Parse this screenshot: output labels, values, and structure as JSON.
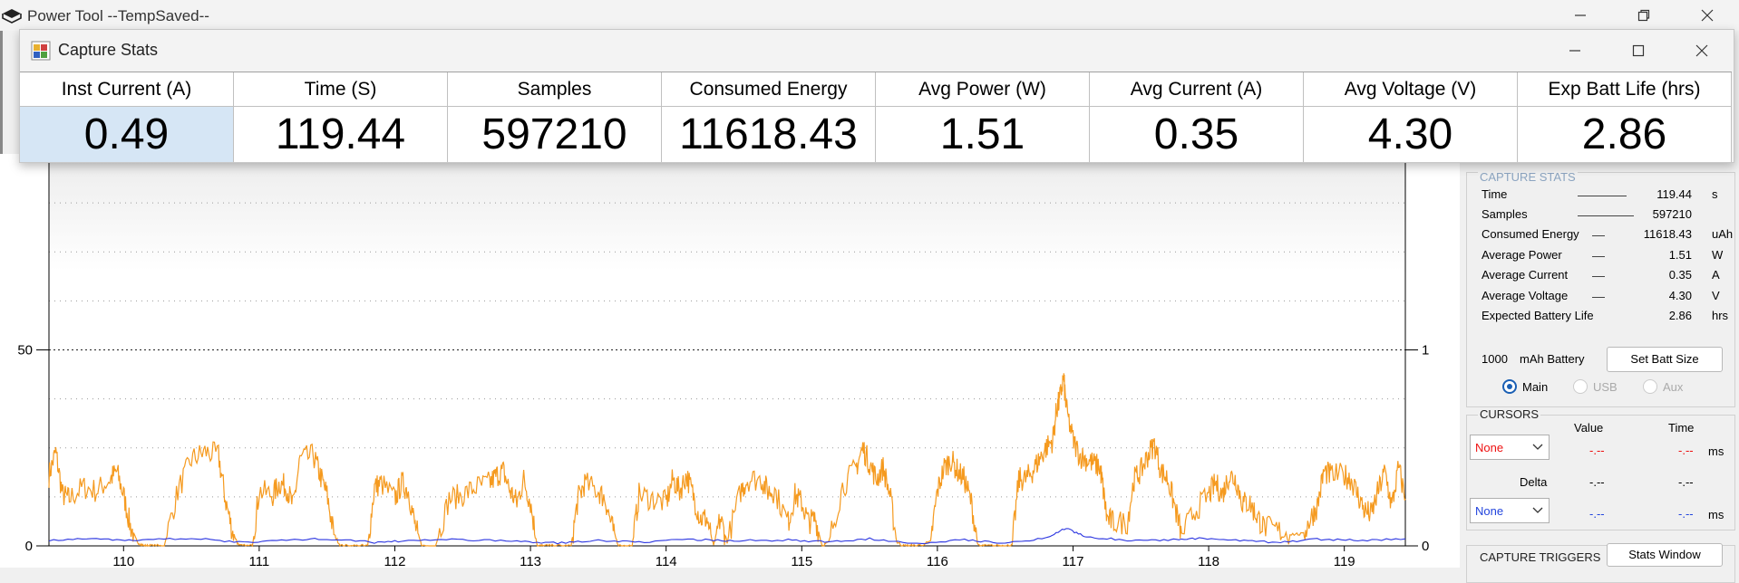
{
  "app": {
    "title": "Power Tool --TempSaved--"
  },
  "stats_window": {
    "title": "Capture Stats",
    "columns": [
      {
        "header": "Inst Current (A)",
        "value": "0.49",
        "selected": true
      },
      {
        "header": "Time (S)",
        "value": "119.44"
      },
      {
        "header": "Samples",
        "value": "597210"
      },
      {
        "header": "Consumed Energy",
        "value": "11618.43"
      },
      {
        "header": "Avg Power (W)",
        "value": "1.51"
      },
      {
        "header": "Avg Current (A)",
        "value": "0.35"
      },
      {
        "header": "Avg Voltage (V)",
        "value": "4.30"
      },
      {
        "header": "Exp Batt Life (hrs)",
        "value": "2.86"
      }
    ]
  },
  "capture_stats_panel": {
    "title": "CAPTURE STATS",
    "rows": [
      {
        "label": "Time",
        "value": "119.44",
        "unit": "s"
      },
      {
        "label": "Samples",
        "value": "597210",
        "unit": ""
      },
      {
        "label": "Consumed Energy",
        "value": "11618.43",
        "unit": "uAh"
      },
      {
        "label": "Average Power",
        "value": "1.51",
        "unit": "W"
      },
      {
        "label": "Average Current",
        "value": "0.35",
        "unit": "A"
      },
      {
        "label": "Average Voltage",
        "value": "4.30",
        "unit": "V"
      },
      {
        "label": "Expected Battery Life",
        "value": "2.86",
        "unit": "hrs"
      }
    ],
    "battery_size": "1000",
    "battery_label": "mAh Battery",
    "set_batt_button": "Set Batt Size",
    "radios": [
      {
        "label": "Main",
        "checked": true,
        "enabled": true
      },
      {
        "label": "USB",
        "checked": false,
        "enabled": false
      },
      {
        "label": "Aux",
        "checked": false,
        "enabled": false
      }
    ]
  },
  "cursors_panel": {
    "title": "CURSORS",
    "value_header": "Value",
    "time_header": "Time",
    "cursor1": {
      "select": "None",
      "value": "-.--",
      "time": "-.--",
      "unit": "ms"
    },
    "delta_label": "Delta",
    "delta": {
      "value": "-.--",
      "time": "-.--"
    },
    "cursor2": {
      "select": "None",
      "value": "-.--",
      "time": "-.--",
      "unit": "ms"
    }
  },
  "capture_triggers": {
    "title": "CAPTURE TRIGGERS",
    "stats_window_button": "Stats Window"
  },
  "chart_data": {
    "type": "line",
    "title": "",
    "xlabel": "",
    "ylabel": "",
    "x_ticks": [
      110,
      111,
      112,
      113,
      114,
      115,
      116,
      117,
      118,
      119
    ],
    "y_left_ticks": [
      0,
      50
    ],
    "y_right_ticks": [
      0,
      1
    ],
    "xlim": [
      109.45,
      119.45
    ],
    "y_left_range": [
      0,
      100
    ],
    "y_right_range": [
      0,
      2
    ],
    "grid": "horizontal-dotted",
    "series": [
      {
        "color": "#f59a1f",
        "axis": "left",
        "points": [
          [
            109.45,
            18
          ],
          [
            109.5,
            24
          ],
          [
            109.55,
            13
          ],
          [
            109.6,
            12
          ],
          [
            109.7,
            15
          ],
          [
            109.8,
            14
          ],
          [
            109.9,
            17
          ],
          [
            109.95,
            19
          ],
          [
            110.0,
            13
          ],
          [
            110.05,
            5
          ],
          [
            110.1,
            1
          ],
          [
            110.15,
            0
          ],
          [
            110.2,
            0
          ],
          [
            110.3,
            0
          ],
          [
            110.4,
            14
          ],
          [
            110.5,
            22
          ],
          [
            110.6,
            24
          ],
          [
            110.7,
            23
          ],
          [
            110.75,
            12
          ],
          [
            110.8,
            4
          ],
          [
            110.85,
            0
          ],
          [
            110.95,
            0
          ],
          [
            111.0,
            14
          ],
          [
            111.1,
            13
          ],
          [
            111.15,
            16
          ],
          [
            111.2,
            15
          ],
          [
            111.25,
            10
          ],
          [
            111.3,
            22
          ],
          [
            111.4,
            23
          ],
          [
            111.45,
            18
          ],
          [
            111.5,
            13
          ],
          [
            111.55,
            3
          ],
          [
            111.6,
            0
          ],
          [
            111.7,
            0
          ],
          [
            111.8,
            0
          ],
          [
            111.85,
            15
          ],
          [
            111.9,
            16
          ],
          [
            112.0,
            12
          ],
          [
            112.05,
            16
          ],
          [
            112.1,
            14
          ],
          [
            112.15,
            5
          ],
          [
            112.2,
            0
          ],
          [
            112.3,
            0
          ],
          [
            112.4,
            12
          ],
          [
            112.5,
            13
          ],
          [
            112.6,
            15
          ],
          [
            112.7,
            16
          ],
          [
            112.75,
            18
          ],
          [
            112.8,
            19
          ],
          [
            112.85,
            14
          ],
          [
            112.9,
            11
          ],
          [
            112.95,
            17
          ],
          [
            113.0,
            11
          ],
          [
            113.05,
            0
          ],
          [
            113.1,
            0
          ],
          [
            113.2,
            0
          ],
          [
            113.3,
            0
          ],
          [
            113.35,
            12
          ],
          [
            113.4,
            16
          ],
          [
            113.5,
            14
          ],
          [
            113.55,
            12
          ],
          [
            113.6,
            5
          ],
          [
            113.65,
            0
          ],
          [
            113.75,
            0
          ],
          [
            113.8,
            13
          ],
          [
            113.9,
            12
          ],
          [
            114.0,
            11
          ],
          [
            114.05,
            17
          ],
          [
            114.1,
            14
          ],
          [
            114.15,
            18
          ],
          [
            114.2,
            13
          ],
          [
            114.25,
            7
          ],
          [
            114.3,
            7
          ],
          [
            114.35,
            0
          ],
          [
            114.4,
            7
          ],
          [
            114.45,
            1
          ],
          [
            114.55,
            14
          ],
          [
            114.6,
            17
          ],
          [
            114.7,
            17
          ],
          [
            114.75,
            14
          ],
          [
            114.8,
            14
          ],
          [
            114.9,
            6
          ],
          [
            114.95,
            13
          ],
          [
            115.0,
            11
          ],
          [
            115.05,
            6
          ],
          [
            115.1,
            7
          ],
          [
            115.15,
            0
          ],
          [
            115.2,
            1
          ],
          [
            115.3,
            15
          ],
          [
            115.4,
            20
          ],
          [
            115.45,
            25
          ],
          [
            115.5,
            21
          ],
          [
            115.55,
            17
          ],
          [
            115.6,
            20
          ],
          [
            115.65,
            13
          ],
          [
            115.7,
            1
          ],
          [
            115.75,
            0
          ],
          [
            115.8,
            0
          ],
          [
            115.85,
            0
          ],
          [
            115.95,
            1
          ],
          [
            116.0,
            14
          ],
          [
            116.05,
            20
          ],
          [
            116.1,
            22
          ],
          [
            116.15,
            19
          ],
          [
            116.2,
            17
          ],
          [
            116.25,
            11
          ],
          [
            116.3,
            0
          ],
          [
            116.35,
            0
          ],
          [
            116.45,
            0
          ],
          [
            116.5,
            0
          ],
          [
            116.55,
            0
          ],
          [
            116.6,
            17
          ],
          [
            116.65,
            17
          ],
          [
            116.7,
            19
          ],
          [
            116.75,
            22
          ],
          [
            116.8,
            25
          ],
          [
            116.85,
            27
          ],
          [
            116.88,
            35
          ],
          [
            116.9,
            37
          ],
          [
            116.93,
            43
          ],
          [
            116.95,
            35
          ],
          [
            117.0,
            27
          ],
          [
            117.05,
            23
          ],
          [
            117.1,
            22
          ],
          [
            117.15,
            21
          ],
          [
            117.2,
            20
          ],
          [
            117.22,
            15
          ],
          [
            117.25,
            7
          ],
          [
            117.3,
            6
          ],
          [
            117.4,
            6
          ],
          [
            117.45,
            17
          ],
          [
            117.5,
            19
          ],
          [
            117.55,
            23
          ],
          [
            117.6,
            26
          ],
          [
            117.65,
            19
          ],
          [
            117.7,
            17
          ],
          [
            117.75,
            10
          ],
          [
            117.8,
            3
          ],
          [
            117.9,
            9
          ],
          [
            118.0,
            13
          ],
          [
            118.05,
            16
          ],
          [
            118.1,
            13
          ],
          [
            118.15,
            18
          ],
          [
            118.2,
            17
          ],
          [
            118.25,
            11
          ],
          [
            118.3,
            11
          ],
          [
            118.35,
            8
          ],
          [
            118.4,
            5
          ],
          [
            118.5,
            4
          ],
          [
            118.6,
            3
          ],
          [
            118.7,
            3
          ],
          [
            118.75,
            7
          ],
          [
            118.8,
            10
          ],
          [
            118.85,
            19
          ],
          [
            118.9,
            18
          ],
          [
            119.0,
            18
          ],
          [
            119.05,
            17
          ],
          [
            119.1,
            13
          ],
          [
            119.15,
            9
          ],
          [
            119.2,
            8
          ],
          [
            119.25,
            14
          ],
          [
            119.3,
            19
          ],
          [
            119.35,
            10
          ],
          [
            119.4,
            20
          ],
          [
            119.45,
            12
          ]
        ]
      },
      {
        "color": "#2a34e0",
        "axis": "left",
        "points": [
          [
            109.45,
            1.5
          ],
          [
            109.8,
            1.8
          ],
          [
            110.1,
            1.4
          ],
          [
            110.5,
            2.0
          ],
          [
            110.85,
            0.9
          ],
          [
            111.2,
            1.5
          ],
          [
            111.5,
            1.8
          ],
          [
            111.85,
            0.9
          ],
          [
            112.1,
            1.4
          ],
          [
            112.5,
            1.6
          ],
          [
            112.9,
            1.2
          ],
          [
            113.2,
            0.7
          ],
          [
            113.5,
            1.4
          ],
          [
            113.8,
            1.0
          ],
          [
            114.2,
            1.6
          ],
          [
            114.5,
            1.3
          ],
          [
            114.9,
            1.5
          ],
          [
            115.2,
            1.0
          ],
          [
            115.5,
            1.8
          ],
          [
            115.85,
            0.7
          ],
          [
            116.2,
            1.6
          ],
          [
            116.5,
            0.7
          ],
          [
            116.8,
            2.0
          ],
          [
            116.95,
            4.5
          ],
          [
            117.1,
            2.2
          ],
          [
            117.4,
            1.5
          ],
          [
            117.7,
            1.5
          ],
          [
            117.9,
            1.9
          ],
          [
            118.2,
            1.4
          ],
          [
            118.5,
            0.9
          ],
          [
            118.8,
            1.7
          ],
          [
            119.1,
            1.4
          ],
          [
            119.45,
            1.8
          ]
        ]
      }
    ]
  }
}
